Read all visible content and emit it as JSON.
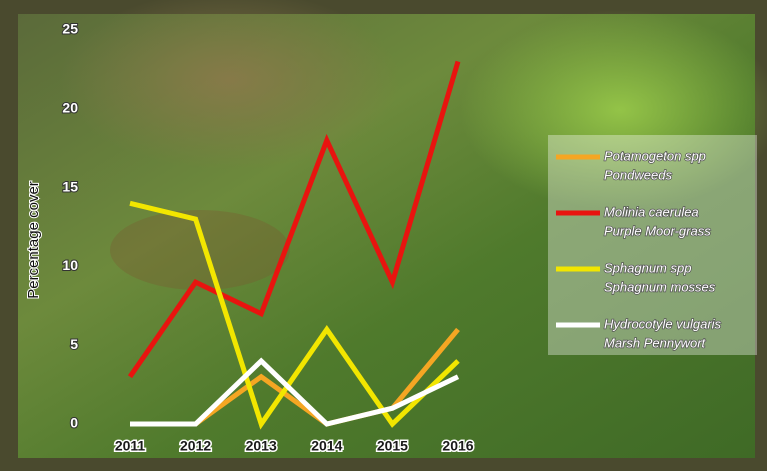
{
  "chart_data": {
    "type": "line",
    "ylabel": "Percentage cover",
    "x": [
      2011,
      2012,
      2013,
      2014,
      2015,
      2016
    ],
    "xlim": [
      2011,
      2016
    ],
    "ylim": [
      0,
      25
    ],
    "yticks": [
      0,
      5,
      10,
      15,
      20,
      25
    ],
    "series": [
      {
        "name": "Potamogeton spp",
        "common_name": "Pondweeds",
        "color": "#f5a623",
        "values": [
          0,
          0,
          3,
          0,
          1,
          6
        ]
      },
      {
        "name": "Molinia caerulea",
        "common_name": "Purple Moor-grass",
        "color": "#e8140f",
        "values": [
          3,
          9,
          7,
          18,
          9,
          23
        ]
      },
      {
        "name": "Sphagnum spp",
        "common_name": "Sphagnum mosses",
        "color": "#f2e600",
        "values": [
          14,
          13,
          0,
          6,
          0,
          4
        ]
      },
      {
        "name": "Hydrocotyle vulgaris",
        "common_name": "Marsh Pennywort",
        "color": "#ffffff",
        "values": [
          0,
          0,
          4,
          0,
          1,
          3
        ]
      }
    ]
  }
}
